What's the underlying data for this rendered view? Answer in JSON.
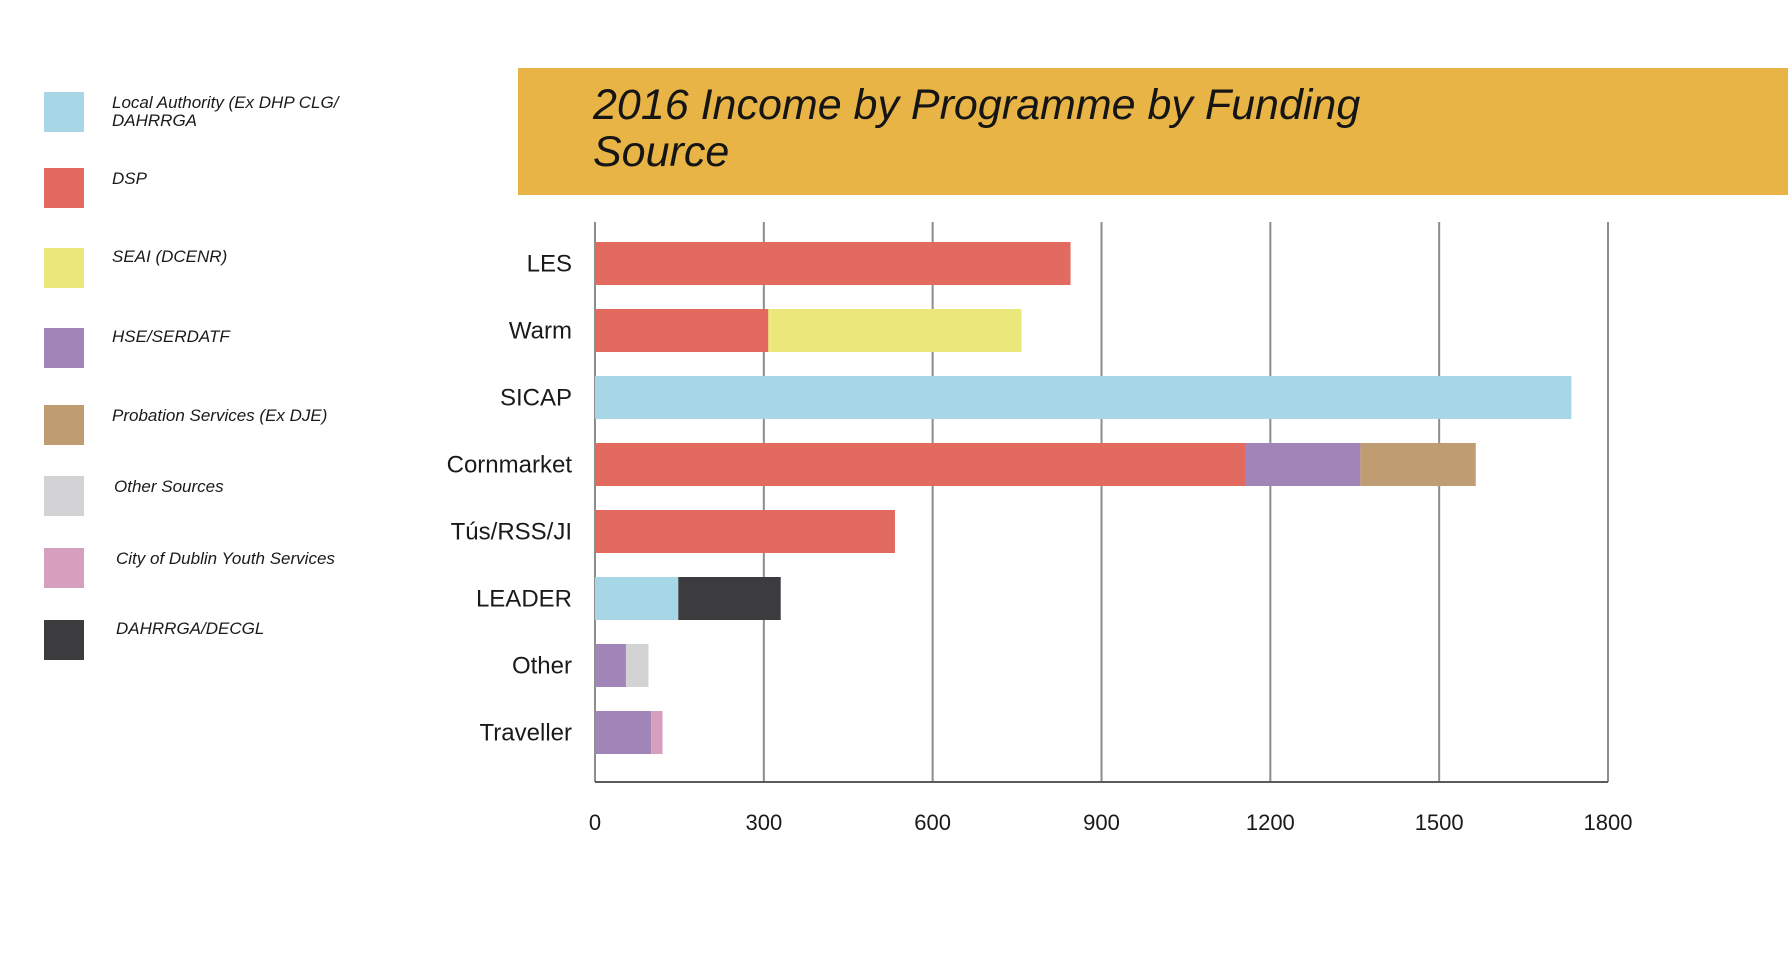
{
  "legend": [
    {
      "label": "Local Authority (Ex DHP CLG/ DAHRRGA",
      "color": "#a7d6e6"
    },
    {
      "label": "DSP",
      "color": "#e26a5e"
    },
    {
      "label": "SEAI (DCENR)",
      "color": "#eae87a"
    },
    {
      "label": "HSE/SERDATF",
      "color": "#a185b8"
    },
    {
      "label": "Probation Services (Ex DJE)",
      "color": "#bf9c72"
    },
    {
      "label": "Other Sources",
      "color": "#d3d3d5"
    },
    {
      "label": "City of Dublin Youth Services",
      "color": "#d69fbe"
    },
    {
      "label": "DAHRRGA/DECGL",
      "color": "#3c3c3f"
    }
  ],
  "chart_data": {
    "type": "bar",
    "orientation": "horizontal",
    "stacked": true,
    "title": "2016 Income by Programme by Funding Source",
    "categories": [
      "LES",
      "Warm",
      "SICAP",
      "Cornmarket",
      "Tús/RSS/JI",
      "LEADER",
      "Other",
      "Traveller"
    ],
    "xlim": [
      0,
      1800
    ],
    "xticks": [
      "0",
      "300",
      "600",
      "900",
      "1200",
      "1500",
      "1800"
    ],
    "grid": true,
    "legend_position": "left",
    "series": [
      {
        "name": "Local Authority (Ex DHP CLG/ DAHRRGA",
        "color": "#a7d6e6",
        "values": [
          0,
          0,
          1735,
          0,
          0,
          148,
          0,
          0
        ]
      },
      {
        "name": "DSP",
        "color": "#e26a5e",
        "values": [
          845,
          308,
          0,
          1155,
          533,
          0,
          0,
          0
        ]
      },
      {
        "name": "SEAI (DCENR)",
        "color": "#eae87a",
        "values": [
          0,
          450,
          0,
          0,
          0,
          0,
          0,
          0
        ]
      },
      {
        "name": "HSE/SERDATF",
        "color": "#a185b8",
        "values": [
          0,
          0,
          0,
          205,
          0,
          0,
          55,
          100
        ]
      },
      {
        "name": "Probation Services (Ex DJE)",
        "color": "#bf9c72",
        "values": [
          0,
          0,
          0,
          205,
          0,
          0,
          0,
          0
        ]
      },
      {
        "name": "Other Sources",
        "color": "#d3d3d5",
        "values": [
          0,
          0,
          0,
          0,
          0,
          0,
          40,
          0
        ]
      },
      {
        "name": "City of Dublin Youth Services",
        "color": "#d69fbe",
        "values": [
          0,
          0,
          0,
          0,
          0,
          0,
          0,
          20
        ]
      },
      {
        "name": "DAHRRGA/DECGL",
        "color": "#3c3c3f",
        "values": [
          0,
          0,
          0,
          0,
          0,
          182,
          0,
          0
        ]
      }
    ]
  },
  "colors": {
    "banner": "#e8b446",
    "grid": "#8c8c8c",
    "axis": "#5a5a5a"
  }
}
